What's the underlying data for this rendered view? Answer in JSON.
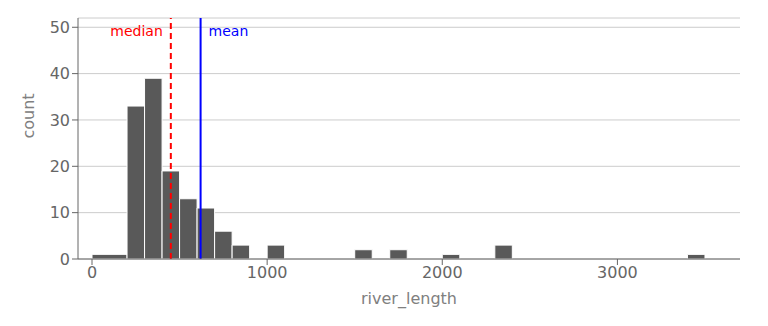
{
  "chart_data": {
    "type": "histogram",
    "title": "",
    "xlabel": "river_length",
    "ylabel": "count",
    "bins": [
      0,
      200,
      300,
      400,
      500,
      600,
      700,
      800,
      900,
      1000,
      1100,
      1200,
      1300,
      1400,
      1500,
      1600,
      1700,
      1800,
      1900,
      2000,
      2100,
      2200,
      2300,
      2400,
      2500,
      2600,
      2700,
      2800,
      2900,
      3000,
      3100,
      3200,
      3300,
      3400,
      3500,
      3600
    ],
    "counts": [
      1,
      33,
      39,
      19,
      13,
      11,
      6,
      3,
      0,
      3,
      0,
      0,
      0,
      0,
      2,
      0,
      2,
      0,
      0,
      1,
      0,
      0,
      3,
      0,
      0,
      0,
      0,
      0,
      0,
      0,
      0,
      0,
      0,
      1,
      0
    ],
    "color": "#595959",
    "xlim": [
      -80,
      3700
    ],
    "ylim": [
      0,
      52
    ],
    "xticks": [
      0,
      1000,
      2000,
      3000
    ],
    "yticks": [
      0,
      10,
      20,
      30,
      40,
      50
    ],
    "grid": true,
    "annotations": [
      {
        "text": "median",
        "x": 450,
        "color": "red",
        "line_style": "dashed"
      },
      {
        "text": "mean",
        "x": 620,
        "color": "blue",
        "line_style": "solid"
      }
    ]
  }
}
